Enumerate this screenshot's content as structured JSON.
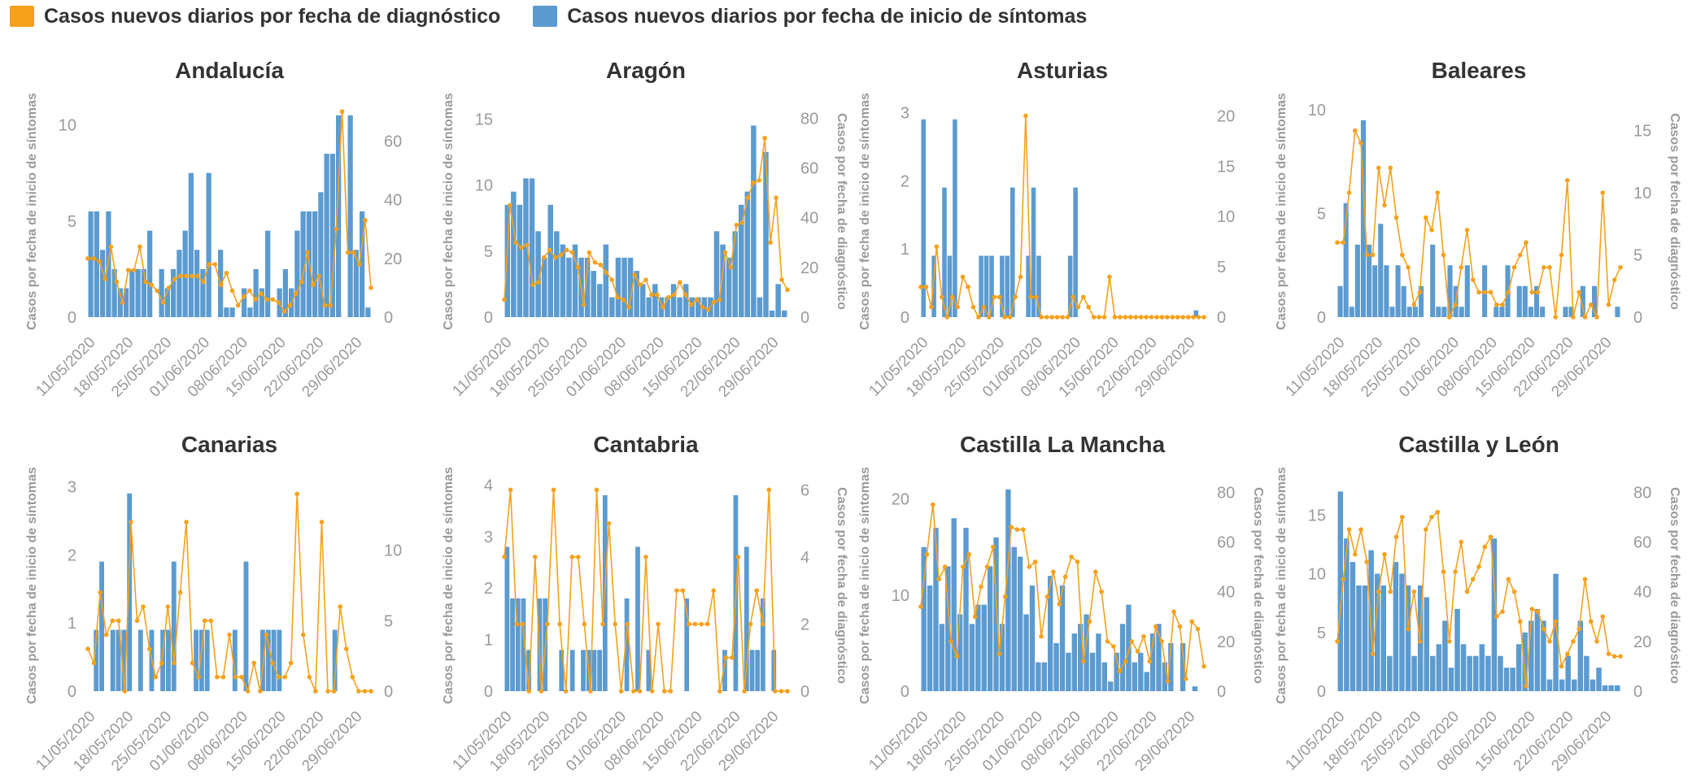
{
  "legend": {
    "diagnosis_label": "Casos nuevos diarios por fecha de diagnóstico",
    "diagnosis_color": "#f5a11c",
    "symptoms_label": "Casos nuevos diarios por fecha de inicio de síntomas",
    "symptoms_color": "#5b9bd0"
  },
  "chart_data": [
    {
      "type": "bar+line",
      "title": "Andalucía",
      "ylabel_left": "Casos por fecha de inicio de síntomas",
      "ylabel_right": "",
      "left_ticks": [
        0,
        5,
        10
      ],
      "left_max": 11,
      "right_ticks": [
        0,
        20,
        40,
        60
      ],
      "right_max": 72,
      "x_tick_labels": [
        "11/05/2020",
        "18/05/2020",
        "25/05/2020",
        "01/06/2020",
        "08/06/2020",
        "15/06/2020",
        "22/06/2020",
        "29/06/2020"
      ],
      "bars": [
        5.5,
        5.5,
        3.5,
        5.5,
        2.5,
        1.5,
        1.5,
        2.5,
        2.5,
        2.5,
        4.5,
        0,
        2.5,
        1.5,
        2.5,
        3.5,
        4.5,
        7.5,
        3.5,
        2.5,
        7.5,
        0,
        3.5,
        0.5,
        0.5,
        0,
        1.5,
        0.5,
        2.5,
        1.5,
        4.5,
        0,
        1.5,
        2.5,
        1.5,
        4.5,
        5.5,
        5.5,
        5.5,
        6.5,
        8.5,
        8.5,
        10.5,
        0,
        10.5,
        3.5,
        5.5,
        0.5
      ],
      "line": [
        20,
        20,
        19,
        13,
        24,
        12,
        5,
        16,
        16,
        24,
        12,
        11,
        9,
        5,
        10,
        13,
        14,
        14,
        14,
        14,
        12,
        18,
        18,
        11,
        15,
        9,
        4,
        7,
        9,
        6,
        8,
        6,
        6,
        5,
        2,
        4,
        8,
        12,
        22,
        11,
        14,
        4,
        4,
        30,
        70,
        22,
        22,
        18,
        33,
        10
      ]
    },
    {
      "type": "bar+line",
      "title": "Aragón",
      "ylabel_left": "Casos por fecha de inicio de síntomas",
      "ylabel_right": "Casos por fecha de diagnóstico",
      "left_ticks": [
        0,
        5,
        10,
        15
      ],
      "left_max": 16,
      "right_ticks": [
        0,
        20,
        40,
        60,
        80
      ],
      "right_max": 85,
      "x_tick_labels": [
        "11/05/2020",
        "18/05/2020",
        "25/05/2020",
        "01/06/2020",
        "08/06/2020",
        "15/06/2020",
        "22/06/2020",
        "29/06/2020"
      ],
      "bars": [
        8.5,
        9.5,
        8.5,
        10.5,
        10.5,
        6.5,
        4.5,
        8.5,
        6.5,
        5.5,
        4.5,
        5.5,
        4.5,
        4.5,
        3.5,
        2.5,
        5.5,
        1.5,
        4.5,
        4.5,
        4.5,
        3.5,
        2.5,
        1.5,
        2.5,
        1.5,
        1.5,
        2.5,
        1.5,
        2.5,
        1.5,
        1.5,
        1.5,
        1.5,
        6.5,
        5.5,
        4.5,
        6.5,
        8.5,
        9.5,
        14.5,
        1.5,
        12.5,
        0.5,
        2.5,
        0.5
      ],
      "line": [
        7,
        45,
        30,
        28,
        29,
        13,
        14,
        24,
        27,
        24,
        25,
        27,
        26,
        20,
        5,
        26,
        22,
        21,
        18,
        15,
        8,
        7,
        4,
        17,
        13,
        15,
        9,
        9,
        4,
        8,
        9,
        14,
        9,
        5,
        7,
        4,
        3,
        6,
        7,
        26,
        20,
        37,
        38,
        48,
        54,
        55,
        72,
        30,
        48,
        15,
        11
      ]
    },
    {
      "type": "bar+line",
      "title": "Asturias",
      "ylabel_left": "Casos por fecha de inicio de síntomas",
      "ylabel_right": "",
      "left_ticks": [
        0,
        1,
        2,
        3
      ],
      "left_max": 3.1,
      "right_ticks": [
        0,
        5,
        10,
        15,
        20
      ],
      "right_max": 21,
      "x_tick_labels": [
        "11/05/2020",
        "18/05/2020",
        "25/05/2020",
        "01/06/2020",
        "08/06/2020",
        "15/06/2020",
        "22/06/2020",
        "29/06/2020"
      ],
      "bars": [
        2.9,
        0,
        0.9,
        0,
        1.9,
        0.9,
        2.9,
        0,
        0,
        0,
        0,
        0.9,
        0.9,
        0.9,
        0,
        0.9,
        0.9,
        1.9,
        0,
        0,
        0.9,
        1.9,
        0.9,
        0,
        0,
        0,
        0,
        0,
        0.9,
        1.9,
        0,
        0,
        0,
        0,
        0,
        0,
        0,
        0,
        0,
        0,
        0,
        0,
        0,
        0,
        0,
        0,
        0,
        0,
        0,
        0,
        0,
        0,
        0.1,
        0
      ],
      "line": [
        3,
        3,
        1,
        7,
        2,
        0,
        2,
        1,
        4,
        3,
        1,
        0,
        1,
        0,
        2,
        2,
        0,
        0,
        2,
        4,
        20,
        2,
        2,
        0,
        0,
        0,
        0,
        0,
        0,
        2,
        1,
        2,
        1,
        0,
        0,
        0,
        4,
        0,
        0,
        0,
        0,
        0,
        0,
        0,
        0,
        0,
        0,
        0,
        0,
        0,
        0,
        0,
        0,
        0,
        0
      ]
    },
    {
      "type": "bar+line",
      "title": "Baleares",
      "ylabel_left": "Casos por fecha de inicio de síntomas",
      "ylabel_right": "Casos por fecha de diagnóstico",
      "left_ticks": [
        0,
        5,
        10
      ],
      "left_max": 10.2,
      "right_ticks": [
        0,
        5,
        10,
        15
      ],
      "right_max": 17,
      "x_tick_labels": [
        "11/05/2020",
        "18/05/2020",
        "25/05/2020",
        "01/06/2020",
        "08/06/2020",
        "15/06/2020",
        "22/06/2020",
        "29/06/2020"
      ],
      "bars": [
        1.5,
        5.5,
        0.5,
        3.5,
        9.5,
        3.5,
        2.5,
        4.5,
        2.5,
        0.5,
        2.5,
        1.5,
        0.5,
        0.5,
        1.5,
        0,
        3.5,
        0.5,
        0.5,
        2.5,
        1.5,
        0.5,
        2.5,
        0,
        0,
        2.5,
        0,
        0.5,
        0.5,
        2.5,
        0,
        1.5,
        1.5,
        0.5,
        1.5,
        0.5,
        0,
        0,
        0,
        0.5,
        0.5,
        0,
        1.5,
        0,
        1.5,
        0,
        0,
        0,
        0.5
      ],
      "line": [
        6,
        6,
        10,
        15,
        14,
        5,
        5,
        12,
        9,
        12,
        8,
        5,
        4,
        1,
        2,
        8,
        7,
        10,
        5,
        0,
        1,
        4,
        7,
        3,
        2,
        2,
        2,
        1,
        1,
        2,
        4,
        5,
        6,
        2,
        2,
        4,
        4,
        0,
        5,
        11,
        0,
        2,
        0,
        1,
        0,
        10,
        1,
        3,
        4
      ]
    },
    {
      "type": "bar+line",
      "title": "Canarias",
      "ylabel_left": "Casos por fecha de inicio de síntomas",
      "ylabel_right": "",
      "left_ticks": [
        0,
        1,
        2,
        3
      ],
      "left_max": 3.1,
      "right_ticks": [
        0,
        5,
        10
      ],
      "right_max": 15,
      "x_tick_labels": [
        "11/05/2020",
        "18/05/2020",
        "25/05/2020",
        "01/06/2020",
        "08/06/2020",
        "15/06/2020",
        "22/06/2020",
        "29/06/2020"
      ],
      "bars": [
        0,
        0.9,
        1.9,
        0,
        0.9,
        0.9,
        0.9,
        2.9,
        0,
        0.9,
        0,
        0.9,
        0,
        0.9,
        0.9,
        1.9,
        0,
        0,
        0,
        0.9,
        0.9,
        0.9,
        0,
        0,
        0,
        0,
        0.9,
        0,
        1.9,
        0,
        0,
        0.9,
        0.9,
        0.9,
        0.9,
        0,
        0,
        0,
        0,
        0,
        0,
        0,
        0,
        0,
        0.9,
        0,
        0,
        0,
        0,
        0,
        0
      ],
      "line": [
        3,
        2,
        7,
        4,
        5,
        5,
        0,
        12,
        5,
        6,
        3,
        1,
        2,
        6,
        2,
        7,
        12,
        2,
        1,
        5,
        5,
        1,
        1,
        4,
        1,
        1,
        0,
        2,
        0,
        4,
        2,
        1,
        1,
        2,
        14,
        4,
        1,
        0,
        12,
        0,
        0,
        6,
        3,
        1,
        0,
        0,
        0
      ]
    },
    {
      "type": "bar+line",
      "title": "Cantabria",
      "ylabel_left": "Casos por fecha de inicio de síntomas",
      "ylabel_right": "Casos por fecha de diagnóstico",
      "left_ticks": [
        0,
        1,
        2,
        3,
        4
      ],
      "left_max": 4.1,
      "right_ticks": [
        0,
        2,
        4,
        6
      ],
      "right_max": 6.3,
      "x_tick_labels": [
        "11/05/2020",
        "18/05/2020",
        "25/05/2020",
        "01/06/2020",
        "08/06/2020",
        "15/06/2020",
        "22/06/2020",
        "29/06/2020"
      ],
      "bars": [
        2.8,
        1.8,
        1.8,
        1.8,
        0.8,
        0,
        1.8,
        1.8,
        0,
        0,
        0.8,
        0,
        0.8,
        0,
        0.8,
        0.8,
        0.8,
        0.8,
        3.8,
        0,
        0,
        0,
        1.8,
        0,
        2.8,
        0,
        0.8,
        0,
        0,
        0,
        0,
        0,
        0,
        1.8,
        0,
        0,
        0,
        0,
        0,
        0,
        0.8,
        0,
        3.8,
        0,
        2.8,
        0.8,
        0.8,
        1.8,
        0,
        0.8,
        0,
        0
      ],
      "line": [
        4,
        6,
        2,
        2,
        0,
        4,
        0,
        2,
        6,
        2,
        0,
        4,
        4,
        2,
        0,
        6,
        2,
        5,
        2,
        0,
        2,
        0,
        0,
        4,
        0,
        2,
        0,
        0,
        3,
        3,
        2,
        2,
        2,
        2,
        3,
        0,
        1,
        1,
        4,
        0,
        2,
        3,
        2,
        6,
        0,
        0,
        0
      ]
    },
    {
      "type": "bar+line",
      "title": "Castilla La Mancha",
      "ylabel_left": "Casos por fecha de inicio de síntomas",
      "ylabel_right": "Casos por fecha de diagnóstico",
      "left_ticks": [
        0,
        10,
        20
      ],
      "left_max": 22,
      "right_ticks": [
        0,
        20,
        40,
        60,
        80
      ],
      "right_max": 85,
      "x_tick_labels": [
        "11/05/2020",
        "18/05/2020",
        "25/05/2020",
        "01/06/2020",
        "08/06/2020",
        "15/06/2020",
        "22/06/2020",
        "29/06/2020"
      ],
      "bars": [
        15,
        11,
        17,
        7,
        13,
        18,
        8,
        17,
        7,
        9,
        9,
        13,
        16,
        7,
        21,
        15,
        14,
        8,
        11,
        3,
        3,
        12,
        5,
        11,
        4,
        6,
        7,
        8,
        4,
        6,
        3,
        1,
        4,
        7,
        9,
        3,
        4,
        2,
        6,
        7,
        3,
        5,
        0,
        5,
        0,
        0.5,
        0
      ],
      "line": [
        34,
        55,
        75,
        45,
        50,
        20,
        14,
        50,
        55,
        30,
        42,
        50,
        58,
        15,
        38,
        66,
        65,
        65,
        50,
        52,
        22,
        38,
        48,
        35,
        46,
        54,
        52,
        12,
        28,
        48,
        40,
        20,
        18,
        8,
        12,
        20,
        16,
        22,
        12,
        26,
        20,
        4,
        32,
        26,
        5,
        28,
        25,
        10
      ]
    },
    {
      "type": "bar+line",
      "title": "Castilla y León",
      "ylabel_left": "Casos por fecha de inicio de síntomas",
      "ylabel_right": "Casos por fecha de diagnóstico",
      "left_ticks": [
        0,
        5,
        10,
        15
      ],
      "left_max": 18,
      "right_ticks": [
        0,
        20,
        40,
        60,
        80
      ],
      "right_max": 85,
      "x_tick_labels": [
        "11/05/2020",
        "18/05/2020",
        "25/05/2020",
        "01/06/2020",
        "08/06/2020",
        "15/06/2020",
        "22/06/2020",
        "29/06/2020"
      ],
      "bars": [
        17,
        13,
        11,
        9,
        9,
        12,
        10,
        9,
        3,
        11,
        10,
        9,
        3,
        9,
        8,
        3,
        4,
        6,
        2,
        7,
        4,
        3,
        3,
        4,
        3,
        13,
        3,
        2,
        2,
        4,
        5,
        6,
        7,
        6,
        1,
        10,
        1,
        3,
        1,
        6,
        3,
        1,
        2,
        0.5,
        0.5,
        0.5
      ],
      "line": [
        20,
        45,
        65,
        55,
        65,
        52,
        15,
        40,
        55,
        40,
        62,
        70,
        25,
        40,
        20,
        65,
        70,
        72,
        48,
        20,
        48,
        60,
        40,
        45,
        50,
        58,
        62,
        30,
        32,
        45,
        40,
        28,
        2,
        33,
        32,
        25,
        20,
        28,
        10,
        15,
        20,
        25,
        45,
        28,
        20,
        30,
        15,
        14,
        14
      ]
    }
  ]
}
